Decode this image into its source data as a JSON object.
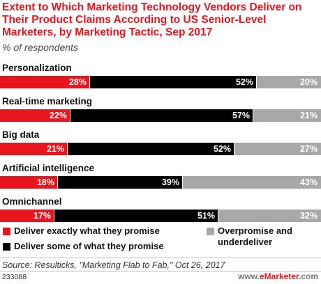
{
  "title": "Extent to Which Marketing Technology Vendors Deliver on Their Product Claims According to US Senior-Level Marketers, by Marketing Tactic, Sep 2017",
  "subtitle": "% of respondents",
  "colors": {
    "deliver_exactly": "#e8151e",
    "deliver_some": "#000000",
    "overpromise": "#a8a8a8",
    "title": "#e8151e"
  },
  "legend": {
    "deliver_exactly": "Deliver exactly what they promise",
    "deliver_some": "Deliver some of what they promise",
    "overpromise": "Overpromise and underdeliver"
  },
  "source": "Source: Resulticks, \"Marketing Flab to Fab,\" Oct 26, 2017",
  "footer_id": "233088",
  "brand": {
    "prefix": "www.",
    "name": "eMarketer",
    "suffix": ".com"
  },
  "chart_data": {
    "type": "bar",
    "stacked": true,
    "orientation": "horizontal",
    "categories": [
      "Personalization",
      "Real-time marketing",
      "Big data",
      "Artificial intelligence",
      "Omnichannel"
    ],
    "series": [
      {
        "name": "Deliver exactly what they promise",
        "values": [
          28,
          22,
          21,
          18,
          17
        ],
        "labels": [
          "28%",
          "22%",
          "21%",
          "18%",
          "17%"
        ]
      },
      {
        "name": "Deliver some of what they promise",
        "values": [
          52,
          57,
          52,
          39,
          51
        ],
        "labels": [
          "52%",
          "57%",
          "52%",
          "39%",
          "51%"
        ]
      },
      {
        "name": "Overpromise and underdeliver",
        "values": [
          20,
          21,
          27,
          43,
          32
        ],
        "labels": [
          "20%",
          "21%",
          "27%",
          "43%",
          "32%"
        ]
      }
    ],
    "title": "Extent to Which Marketing Technology Vendors Deliver on Their Product Claims According to US Senior-Level Marketers, by Marketing Tactic, Sep 2017",
    "subtitle": "% of respondents",
    "legend_position": "bottom"
  }
}
